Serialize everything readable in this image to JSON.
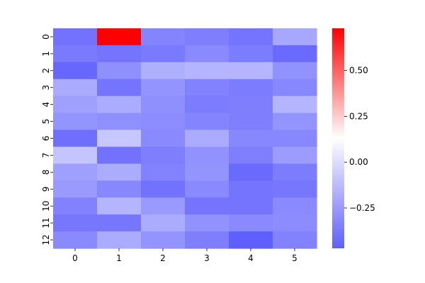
{
  "chart_data": {
    "type": "heatmap",
    "title": "",
    "xlabel": "",
    "ylabel": "",
    "x_categories": [
      "0",
      "1",
      "2",
      "3",
      "4",
      "5"
    ],
    "y_categories": [
      "0",
      "1",
      "2",
      "3",
      "4",
      "5",
      "6",
      "7",
      "8",
      "9",
      "10",
      "11",
      "12"
    ],
    "values": [
      [
        -0.4,
        0.73,
        -0.33,
        -0.35,
        -0.39,
        -0.2
      ],
      [
        -0.37,
        -0.39,
        -0.37,
        -0.31,
        -0.36,
        -0.43
      ],
      [
        -0.44,
        -0.29,
        -0.17,
        -0.15,
        -0.15,
        -0.28
      ],
      [
        -0.19,
        -0.39,
        -0.27,
        -0.34,
        -0.36,
        -0.32
      ],
      [
        -0.23,
        -0.18,
        -0.29,
        -0.36,
        -0.35,
        -0.15
      ],
      [
        -0.27,
        -0.29,
        -0.3,
        -0.33,
        -0.35,
        -0.27
      ],
      [
        -0.41,
        -0.08,
        -0.31,
        -0.19,
        -0.32,
        -0.32
      ],
      [
        -0.09,
        -0.4,
        -0.35,
        -0.28,
        -0.35,
        -0.24
      ],
      [
        -0.23,
        -0.18,
        -0.34,
        -0.27,
        -0.43,
        -0.36
      ],
      [
        -0.25,
        -0.32,
        -0.4,
        -0.31,
        -0.39,
        -0.38
      ],
      [
        -0.34,
        -0.15,
        -0.25,
        -0.39,
        -0.39,
        -0.31
      ],
      [
        -0.38,
        -0.38,
        -0.18,
        -0.28,
        -0.31,
        -0.3
      ],
      [
        -0.31,
        -0.19,
        -0.27,
        -0.35,
        -0.47,
        -0.34
      ]
    ],
    "vmin": -0.47,
    "vmax": 0.73,
    "colormap": [
      "#5f5ffe",
      "#ffffff",
      "#ff0000"
    ],
    "colorbar_ticks": [
      0.5,
      0.25,
      0.0,
      -0.25
    ],
    "colorbar_tick_labels": [
      "0.50",
      "0.25",
      "0.00",
      "−0.25"
    ],
    "grid": false,
    "legend": "colorbar-right"
  }
}
